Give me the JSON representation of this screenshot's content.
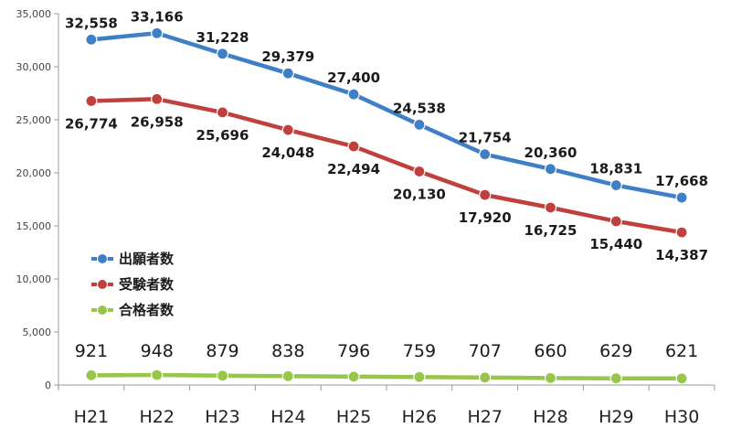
{
  "chart_data": {
    "type": "line",
    "categories": [
      "H21",
      "H22",
      "H23",
      "H24",
      "H25",
      "H26",
      "H27",
      "H28",
      "H29",
      "H30"
    ],
    "series": [
      {
        "name": "出願者数",
        "color": "#3f7fc6",
        "values": [
          32558,
          33166,
          31228,
          29379,
          27400,
          24538,
          21754,
          20360,
          18831,
          17668
        ],
        "labels": [
          "32,558",
          "33,166",
          "31,228",
          "29,379",
          "27,400",
          "24,538",
          "21,754",
          "20,360",
          "18,831",
          "17,668"
        ]
      },
      {
        "name": "受験者数",
        "color": "#c0403d",
        "values": [
          26774,
          26958,
          25696,
          24048,
          22494,
          20130,
          17920,
          16725,
          15440,
          14387
        ],
        "labels": [
          "26,774",
          "26,958",
          "25,696",
          "24,048",
          "22,494",
          "20,130",
          "17,920",
          "16,725",
          "15,440",
          "14,387"
        ]
      },
      {
        "name": "合格者数",
        "color": "#98c64a",
        "values": [
          921,
          948,
          879,
          838,
          796,
          759,
          707,
          660,
          629,
          621
        ],
        "labels": [
          "921",
          "948",
          "879",
          "838",
          "796",
          "759",
          "707",
          "660",
          "629",
          "621"
        ]
      }
    ],
    "ylim": [
      0,
      35000
    ],
    "yticks": [
      0,
      5000,
      10000,
      15000,
      20000,
      25000,
      30000,
      35000
    ],
    "ytick_labels": [
      "0",
      "5,000",
      "10,000",
      "15,000",
      "20,000",
      "25,000",
      "30,000",
      "35,000"
    ],
    "grid": false,
    "legend": "left-middle"
  }
}
